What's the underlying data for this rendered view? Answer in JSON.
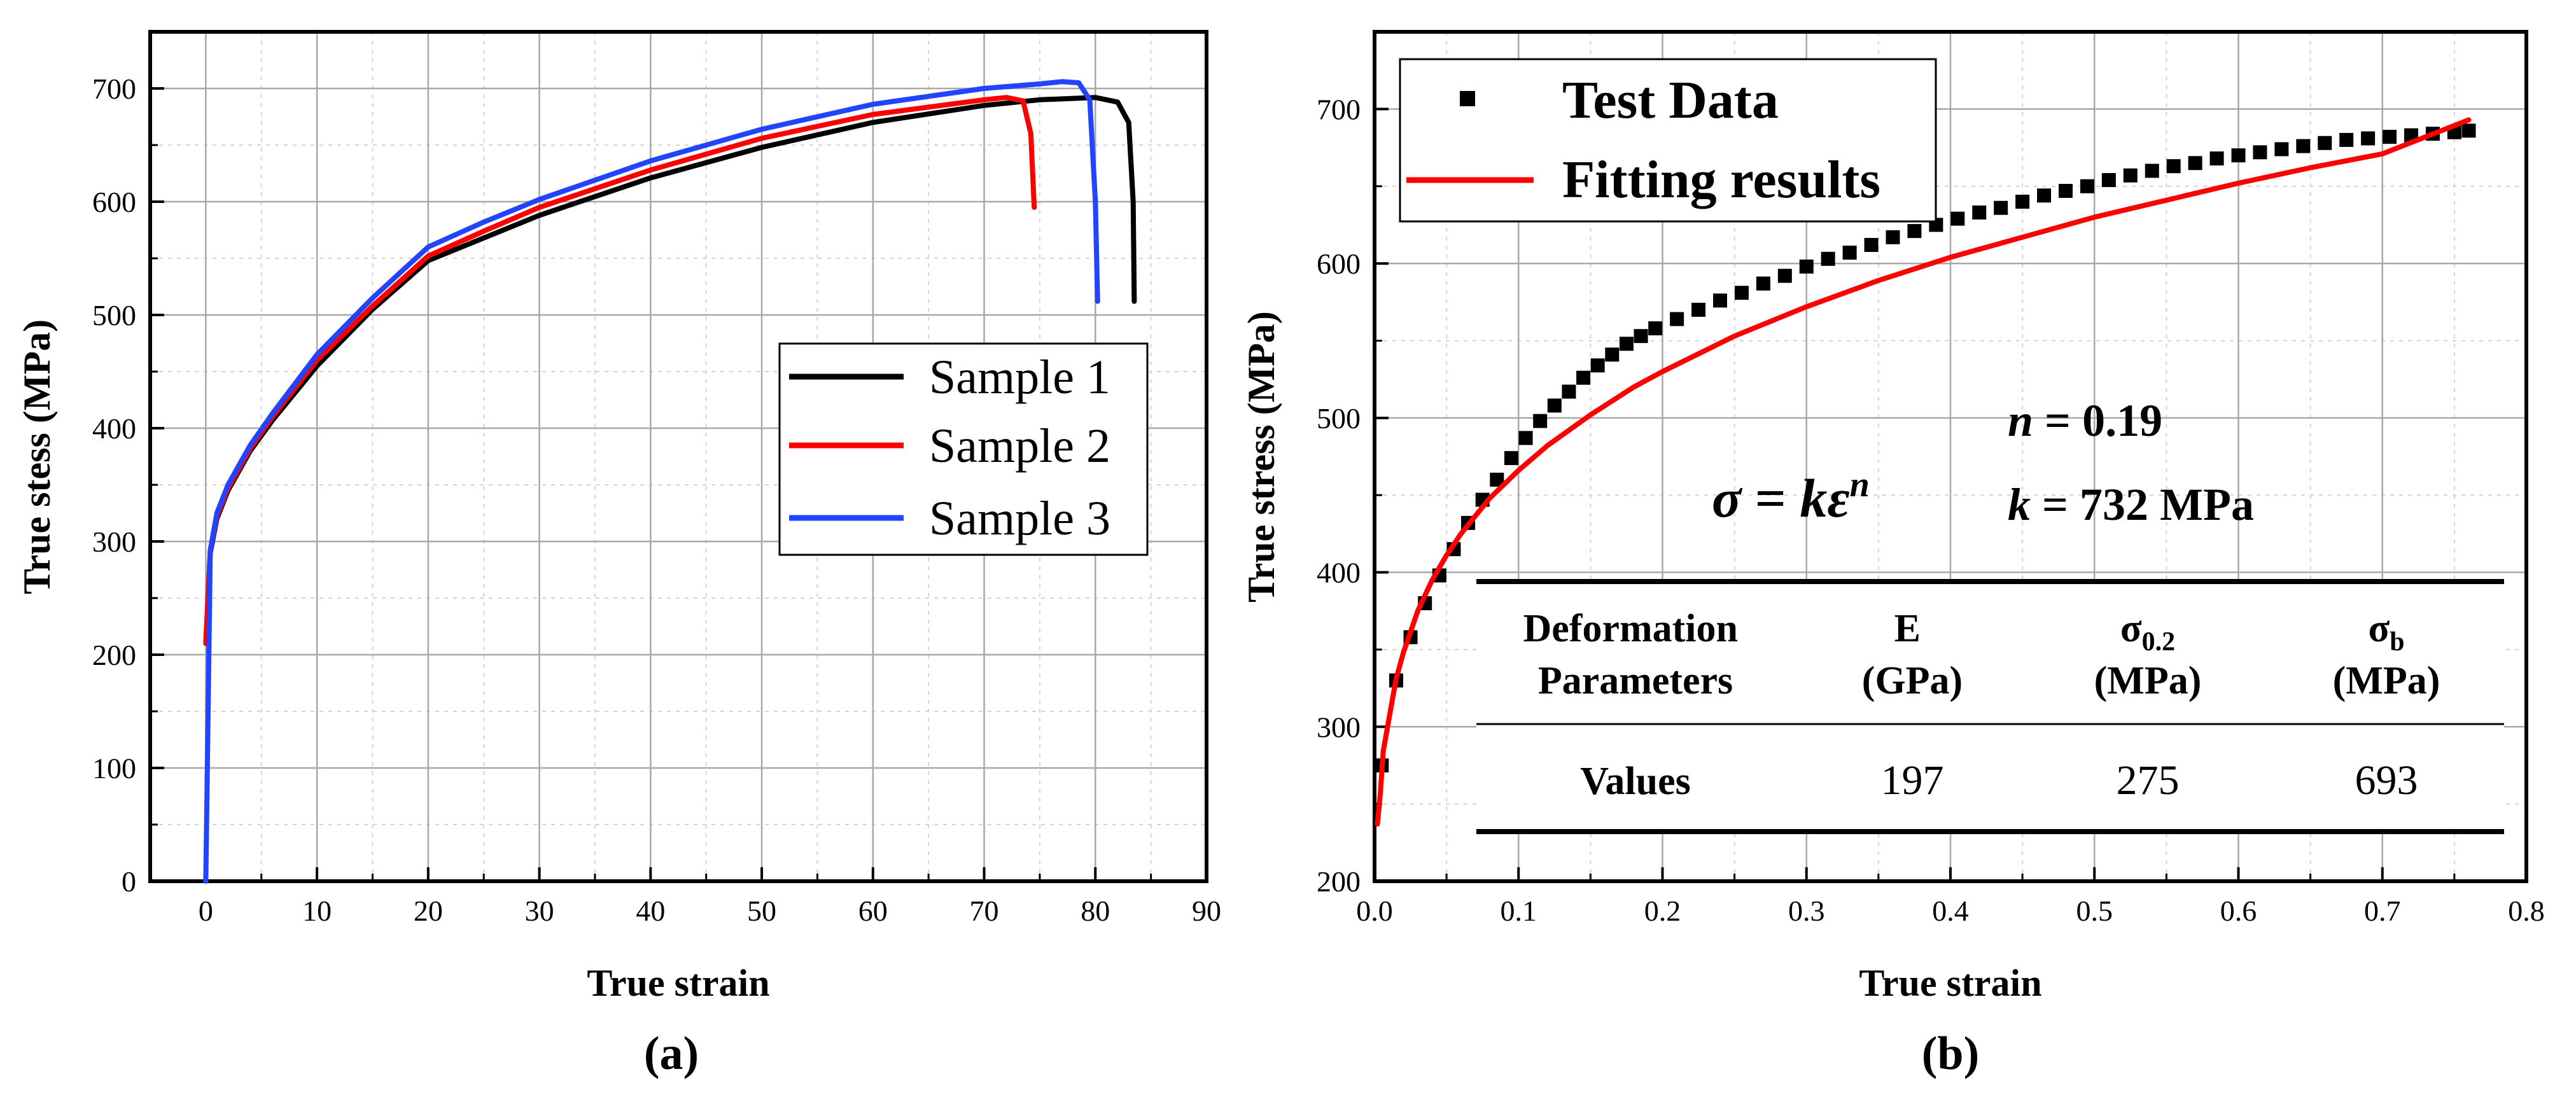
{
  "chart_data": [
    {
      "type": "line",
      "panel_label": "(a)",
      "xlabel": "True strain",
      "ylabel": "True stess (MPa)",
      "xlim": [
        -5,
        90
      ],
      "ylim": [
        0,
        750
      ],
      "xticks": [
        "0",
        "10",
        "20",
        "30",
        "40",
        "50",
        "60",
        "70",
        "80",
        "90"
      ],
      "yticks": [
        "0",
        "100",
        "200",
        "300",
        "400",
        "500",
        "600",
        "700"
      ],
      "grid": true,
      "legend": "center-right",
      "series": [
        {
          "name": "Sample 1",
          "color": "#000000",
          "x": [
            0,
            0.4,
            1,
            2,
            4,
            6,
            10,
            15,
            20,
            25,
            30,
            40,
            50,
            60,
            70,
            75,
            80,
            82,
            83,
            83.4,
            83.5
          ],
          "y": [
            210,
            290,
            320,
            345,
            380,
            407,
            455,
            505,
            548,
            568,
            588,
            621,
            648,
            670,
            685,
            690,
            692,
            688,
            670,
            600,
            512
          ]
        },
        {
          "name": "Sample 2",
          "color": "#ff0000",
          "x": [
            0,
            0.4,
            1,
            2,
            4,
            6,
            10,
            15,
            20,
            25,
            30,
            40,
            50,
            60,
            70,
            72,
            73.5,
            74.2,
            74.5
          ],
          "y": [
            210,
            292,
            322,
            347,
            382,
            410,
            460,
            508,
            552,
            574,
            595,
            628,
            656,
            677,
            690,
            692,
            689,
            660,
            595
          ]
        },
        {
          "name": "Sample 3",
          "color": "#2244ff",
          "x": [
            0,
            0.4,
            1,
            2,
            4,
            6,
            10,
            15,
            20,
            25,
            30,
            40,
            50,
            60,
            70,
            75,
            77,
            78.5,
            79.5,
            80,
            80.2
          ],
          "y": [
            0,
            292,
            325,
            350,
            385,
            413,
            465,
            515,
            560,
            582,
            602,
            636,
            664,
            686,
            700,
            704,
            706,
            705,
            690,
            600,
            512
          ]
        }
      ]
    },
    {
      "type": "scatter",
      "panel_label": "(b)",
      "xlabel": "True strain",
      "ylabel": "True stress (MPa)",
      "xlim": [
        0.0,
        0.8
      ],
      "ylim": [
        200,
        750
      ],
      "xticks": [
        "0.0",
        "0.1",
        "0.2",
        "0.3",
        "0.4",
        "0.5",
        "0.6",
        "0.7",
        "0.8"
      ],
      "yticks": [
        "200",
        "300",
        "400",
        "500",
        "600",
        "700"
      ],
      "grid": true,
      "legend": "top-left",
      "series": [
        {
          "name": "Test Data",
          "marker": "square",
          "color": "#000000",
          "x": [
            0.005,
            0.015,
            0.025,
            0.035,
            0.045,
            0.055,
            0.065,
            0.075,
            0.085,
            0.095,
            0.105,
            0.115,
            0.125,
            0.135,
            0.145,
            0.155,
            0.165,
            0.175,
            0.185,
            0.195,
            0.21,
            0.225,
            0.24,
            0.255,
            0.27,
            0.285,
            0.3,
            0.315,
            0.33,
            0.345,
            0.36,
            0.375,
            0.39,
            0.405,
            0.42,
            0.435,
            0.45,
            0.465,
            0.48,
            0.495,
            0.51,
            0.525,
            0.54,
            0.555,
            0.57,
            0.585,
            0.6,
            0.615,
            0.63,
            0.645,
            0.66,
            0.675,
            0.69,
            0.705,
            0.72,
            0.735,
            0.75,
            0.76
          ],
          "y": [
            275,
            330,
            358,
            380,
            398,
            415,
            432,
            447,
            460,
            474,
            487,
            498,
            508,
            517,
            526,
            534,
            541,
            548,
            553,
            558,
            564,
            570,
            576,
            581,
            587,
            592,
            598,
            603,
            607,
            612,
            617,
            621,
            625,
            629,
            633,
            636,
            640,
            644,
            647,
            650,
            654,
            657,
            660,
            663,
            665,
            668,
            670,
            672,
            674,
            676,
            678,
            680,
            681,
            682,
            683,
            684,
            685,
            686
          ]
        },
        {
          "name": "Fitting results",
          "color": "#ff0000",
          "equation": "σ = kε^n",
          "k": 732,
          "n": 0.19,
          "x": [
            0.002,
            0.004,
            0.006,
            0.01,
            0.015,
            0.02,
            0.03,
            0.04,
            0.05,
            0.06,
            0.08,
            0.1,
            0.12,
            0.15,
            0.18,
            0.2,
            0.25,
            0.3,
            0.35,
            0.4,
            0.45,
            0.5,
            0.55,
            0.6,
            0.65,
            0.7,
            0.76
          ],
          "y": [
            237,
            257,
            284,
            305,
            331,
            348,
            375,
            395,
            411,
            425,
            448,
            466,
            482,
            502,
            520,
            530,
            553,
            572,
            589,
            604,
            617,
            630,
            641,
            652,
            662,
            671,
            693
          ]
        }
      ]
    }
  ],
  "annotations": {
    "equation": {
      "lhs": "σ",
      "eq": " = ",
      "k": "k",
      "eps": "ε",
      "exp": "n"
    },
    "n_line": {
      "var": "n",
      "eq": " = ",
      "val": "0.19"
    },
    "k_line": {
      "var": "k",
      "eq": " = ",
      "val": "732",
      "unit": " MPa"
    }
  },
  "table": {
    "header": {
      "col1": [
        "Deformation",
        "Parameters"
      ],
      "col2": [
        "E",
        "(GPa)"
      ],
      "col3": {
        "base": "σ",
        "sub": "0.2",
        "unit": "(MPa)"
      },
      "col4": {
        "base": "σ",
        "sub": "b",
        "unit": "(MPa)"
      }
    },
    "row": {
      "label": "Values",
      "E": "197",
      "sigma02": "275",
      "sigmab": "693"
    }
  }
}
